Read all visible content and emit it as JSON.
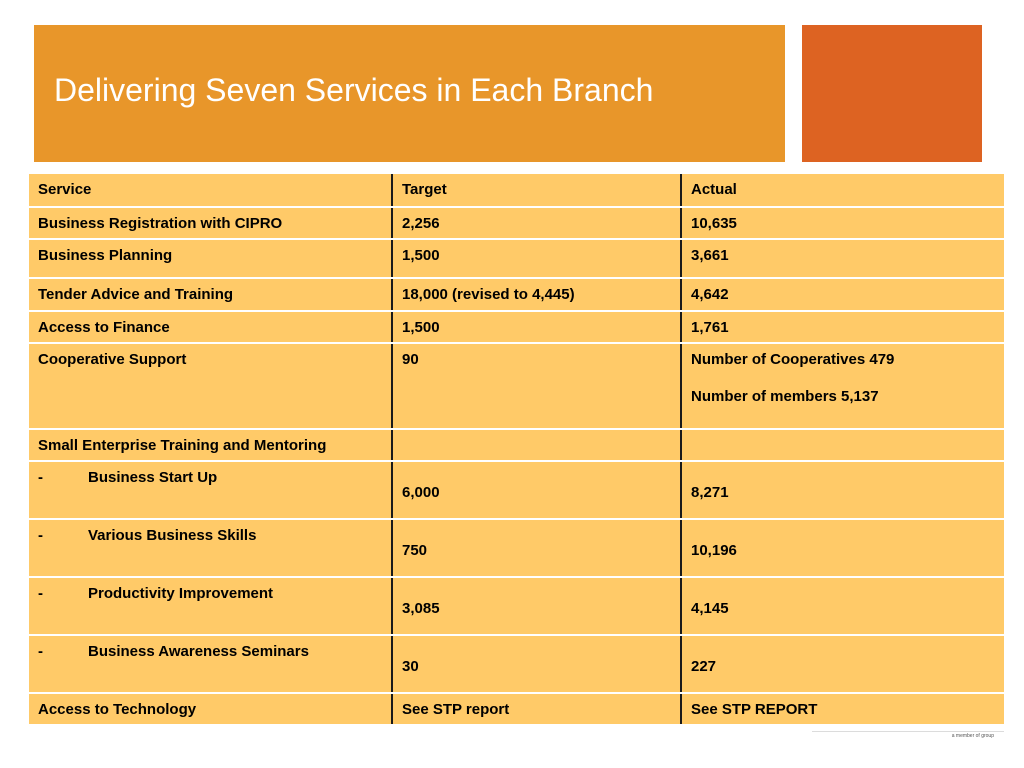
{
  "slide": {
    "title": "Delivering Seven Services in Each Branch"
  },
  "colors": {
    "title_bg": "#E8962A",
    "accent_bg": "#DD6322",
    "table_cell_bg": "#FFCA68"
  },
  "table": {
    "headers": [
      "Service",
      "Target",
      "Actual"
    ],
    "rows": [
      {
        "service": "Business Registration with CIPRO",
        "target": "2,256",
        "actual": "10,635"
      },
      {
        "service": "Business Planning",
        "target": "1,500",
        "actual": "3,661"
      },
      {
        "service": "Tender Advice and Training",
        "target": "18,000 (revised to 4,445)",
        "actual": "4,642"
      },
      {
        "service": "Access to Finance",
        "target": "1,500",
        "actual": "1,761"
      },
      {
        "service": "Cooperative Support",
        "target": "90",
        "actual_line1": "Number of Cooperatives 479",
        "actual_line2": "Number of members 5,137"
      },
      {
        "service": "Small Enterprise Training and Mentoring",
        "target": "",
        "actual": ""
      },
      {
        "bullet": "-",
        "service": "Business Start Up",
        "target": "6,000",
        "actual": "8,271"
      },
      {
        "bullet": "-",
        "service": "Various Business Skills",
        "target": "750",
        "actual": "10,196"
      },
      {
        "bullet": "-",
        "service": "Productivity Improvement",
        "target": "3,085",
        "actual": "4,145"
      },
      {
        "bullet": "-",
        "service": "Business Awareness Seminars",
        "target": "30",
        "actual": "227"
      },
      {
        "service": "Access to Technology",
        "target": "See STP report",
        "actual": "See STP REPORT"
      }
    ]
  },
  "footer": {
    "prefix": "a member of",
    "brand": "",
    "suffix": "group"
  }
}
